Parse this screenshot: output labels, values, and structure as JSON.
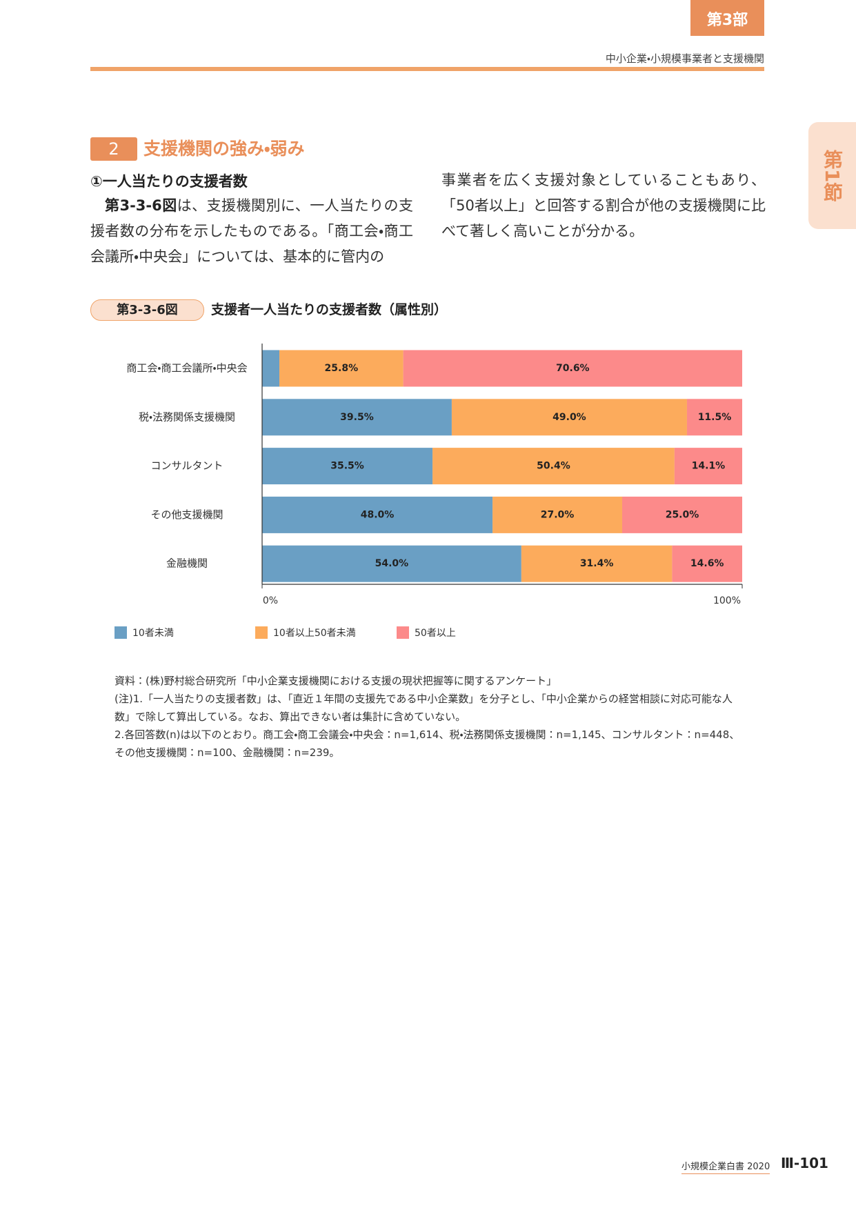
{
  "header": {
    "part_tab": "第3部",
    "running_title": "中小企業・小規模事業者と支援機関",
    "side_tab": "第1節"
  },
  "section": {
    "number": "2",
    "title": "支援機関の強み・弱み"
  },
  "body": {
    "heading": "①一人当たりの支援者数",
    "left": [
      "第3-3-6図",
      "は、支援機関別に、一人当たりの支援者数の分布を示したものである。「商工会・商工会議所・中央会」については、基本的に管内の"
    ],
    "right": "事業者を広く支援対象としていることもあり、「50者以上」と回答する割合が他の支援機関に比べて著しく高いことが分かる。"
  },
  "figure": {
    "label": "第3-3-6図",
    "title": "支援者一人当たりの支援者数（属性別）"
  },
  "chart_data": {
    "type": "stacked_barh",
    "categories": [
      "商工会・商工会議所・中央会",
      "税・法務関係支援機関",
      "コンサルタント",
      "その他支援機関",
      "金融機関"
    ],
    "series": [
      {
        "name": "10者未満",
        "color": "#6a9fc4",
        "values": [
          3.6,
          39.5,
          35.5,
          48.0,
          54.0
        ],
        "value_labels": [
          null,
          "39.5%",
          "35.5%",
          "48.0%",
          "54.0%"
        ]
      },
      {
        "name": "10者以上50者未満",
        "color": "#fcab5c",
        "values": [
          25.8,
          49.0,
          50.4,
          27.0,
          31.4
        ],
        "value_labels": [
          "25.8%",
          "49.0%",
          "50.4%",
          "27.0%",
          "31.4%"
        ]
      },
      {
        "name": "50者以上",
        "color": "#fc8a8a",
        "values": [
          70.6,
          11.5,
          14.1,
          25.0,
          14.6
        ],
        "value_labels": [
          "70.6%",
          "11.5%",
          "14.1%",
          "25.0%",
          "14.6%"
        ]
      }
    ],
    "xlim": [
      0,
      100
    ],
    "xticks": [
      {
        "value": 0,
        "label": "0%"
      },
      {
        "value": 100,
        "label": "100%"
      }
    ]
  },
  "notes": [
    "資料：(株)野村総合研究所「中小企業支援機関における支援の現状把握等に関するアンケート」",
    "(注)1.「一人当たりの支援者数」は、「直近１年間の支援先である中小企業数」を分子とし、「中小企業からの経営相談に対応可能な人数」で除して算出している。なお、算出できない者は集計に含めていない。",
    "2.各回答数(n)は以下のとおり。商工会・商工会議会・中央会：n=1,614、税・法務関係支援機関：n=1,145、コンサルタント：n=448、その他支援機関：n=100、金融機関：n=239。"
  ],
  "footer": {
    "book": "小規模企業白書 2020",
    "page": "Ⅲ-101"
  }
}
